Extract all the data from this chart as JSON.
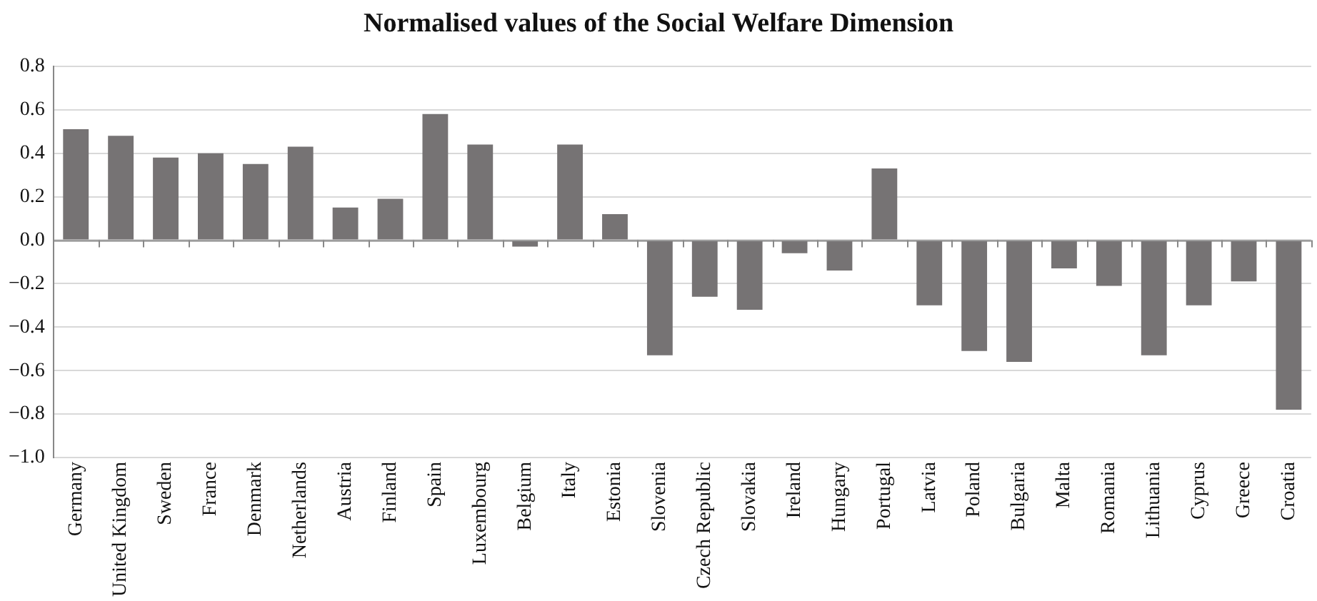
{
  "chart_data": {
    "type": "bar",
    "title": "Normalised values of the Social Welfare Dimension",
    "categories": [
      "Germany",
      "United Kingdom",
      "Sweden",
      "France",
      "Denmark",
      "Netherlands",
      "Austria",
      "Finland",
      "Spain",
      "Luxembourg",
      "Belgium",
      "Italy",
      "Estonia",
      "Slovenia",
      "Czech Republic",
      "Slovakia",
      "Ireland",
      "Hungary",
      "Portugal",
      "Latvia",
      "Poland",
      "Bulgaria",
      "Malta",
      "Romania",
      "Lithuania",
      "Cyprus",
      "Greece",
      "Croatia"
    ],
    "values": [
      0.51,
      0.48,
      0.38,
      0.4,
      0.35,
      0.43,
      0.15,
      0.19,
      0.58,
      0.44,
      -0.03,
      0.44,
      0.12,
      -0.53,
      -0.26,
      -0.32,
      -0.06,
      -0.14,
      0.33,
      -0.3,
      -0.51,
      -0.56,
      -0.13,
      -0.21,
      -0.53,
      -0.3,
      -0.19,
      -0.78
    ],
    "color": "#767374",
    "ylim": [
      -1.0,
      0.8
    ],
    "yticks": [
      {
        "value": -1.0,
        "label": "−1.0"
      },
      {
        "value": -0.8,
        "label": "−0.8"
      },
      {
        "value": -0.6,
        "label": "−0.6"
      },
      {
        "value": -0.4,
        "label": "−0.4"
      },
      {
        "value": -0.2,
        "label": "−0.2"
      },
      {
        "value": 0,
        "label": "0.0"
      },
      {
        "value": 0.2,
        "label": "0.2"
      },
      {
        "value": 0.4,
        "label": "0.4"
      },
      {
        "value": 0.6,
        "label": "0.6"
      },
      {
        "value": 0.8,
        "label": "0.8"
      }
    ],
    "grid": "y",
    "legend": false
  }
}
